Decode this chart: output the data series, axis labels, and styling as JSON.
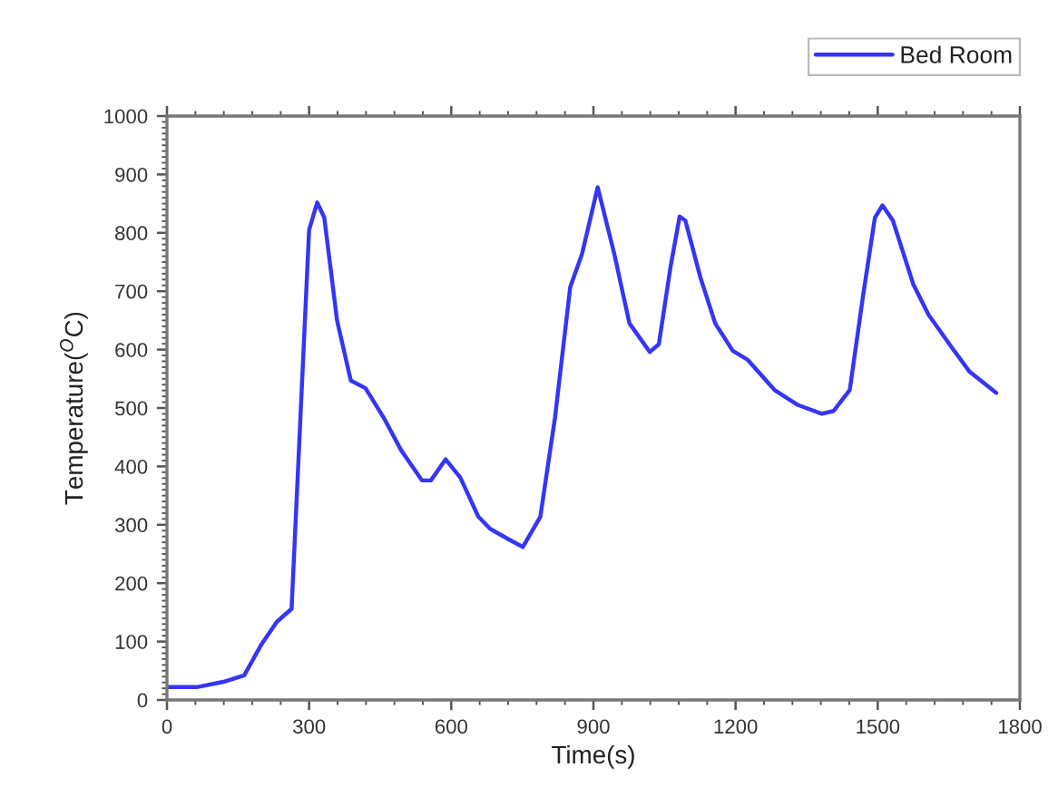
{
  "chart_data": {
    "type": "line",
    "xlabel": "Time(s)",
    "ylabel": "Temperature($^{O}$C)",
    "xlim": [
      0,
      1800
    ],
    "xticks": [
      0,
      300,
      600,
      900,
      1200,
      1500,
      1800
    ],
    "ylim": [
      0,
      1000
    ],
    "yticks": [
      0,
      100,
      200,
      300,
      400,
      500,
      600,
      700,
      800,
      900,
      1000
    ],
    "grid": false,
    "legend": "top right",
    "marker": "none",
    "line_style": "solid",
    "series": [
      {
        "name": "Bed Room",
        "color": "#3535f5",
        "x": [
          0,
          63,
          119,
          163,
          200,
          232,
          263,
          300,
          317,
          332,
          359,
          388,
          419,
          457,
          494,
          538,
          557,
          588,
          619,
          657,
          682,
          719,
          751,
          788,
          819,
          851,
          876,
          909,
          944,
          976,
          1019,
          1038,
          1063,
          1082,
          1094,
          1126,
          1157,
          1194,
          1225,
          1282,
          1332,
          1382,
          1407,
          1441,
          1469,
          1494,
          1510,
          1532,
          1575,
          1607,
          1657,
          1694,
          1750
        ],
        "values": [
          22,
          22,
          31,
          42,
          96,
          134,
          156,
          805,
          852,
          826,
          650,
          547,
          534,
          484,
          428,
          376,
          376,
          412,
          381,
          314,
          293,
          276,
          262,
          314,
          484,
          707,
          764,
          878,
          764,
          645,
          596,
          609,
          743,
          828,
          821,
          723,
          645,
          598,
          583,
          531,
          505,
          490,
          495,
          531,
          692,
          826,
          847,
          821,
          712,
          660,
          603,
          562,
          526
        ]
      }
    ]
  }
}
